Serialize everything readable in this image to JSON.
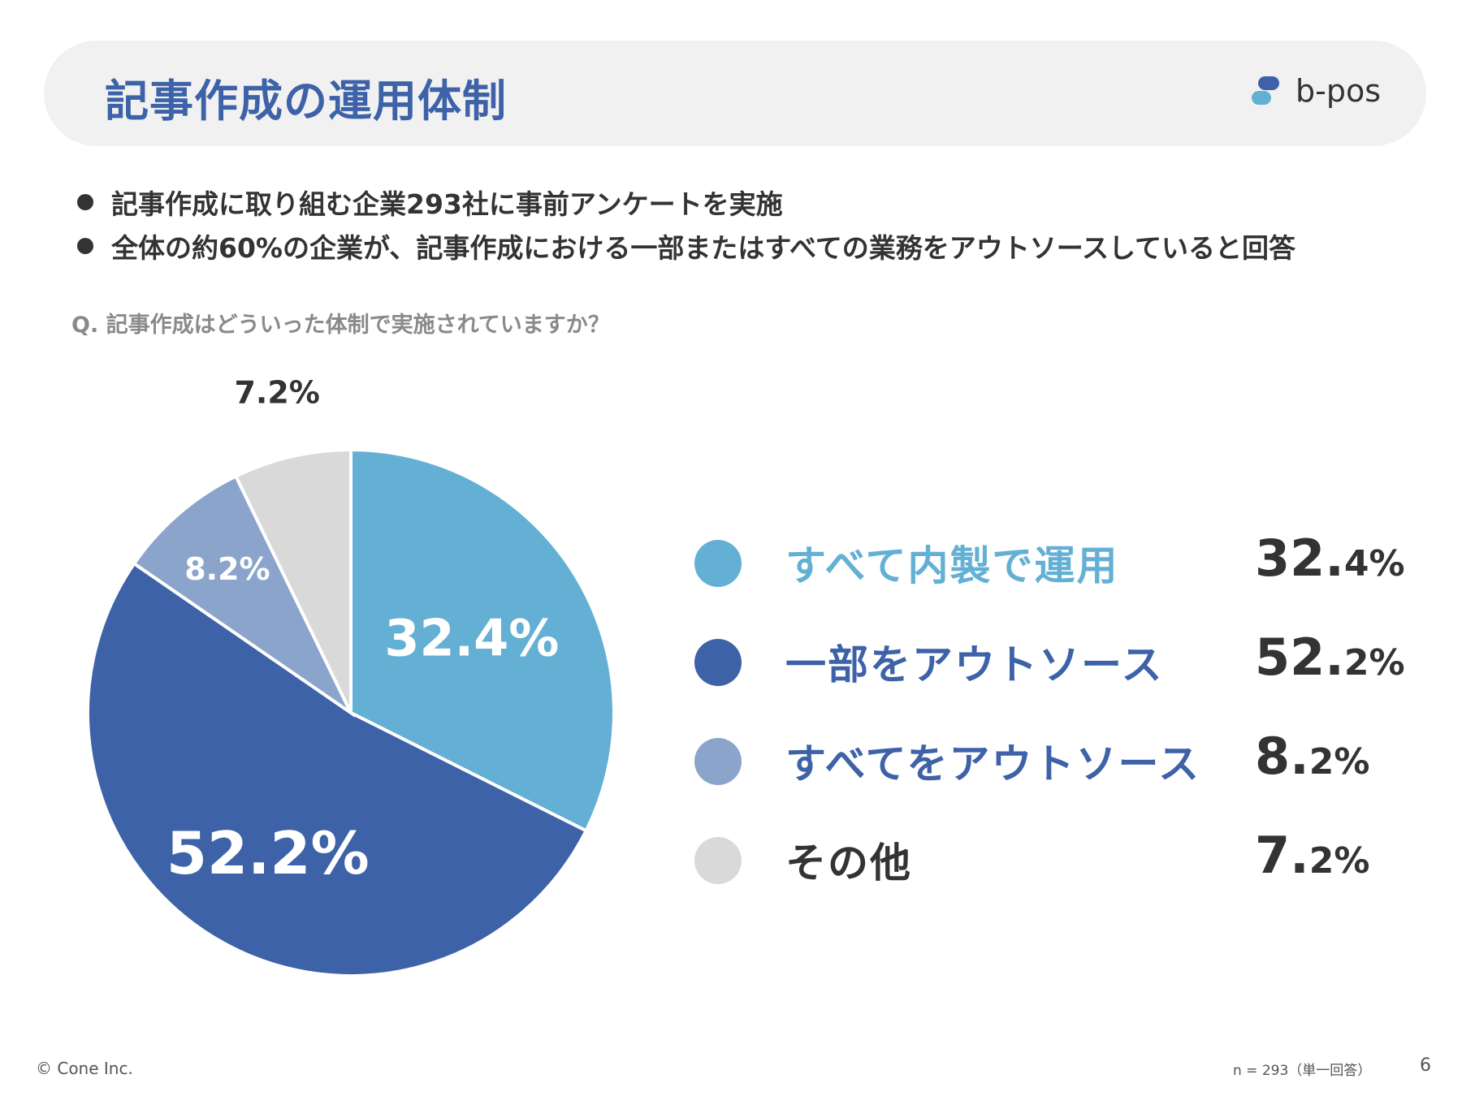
{
  "header": {
    "title": "記事作成の運用体制",
    "logo_text": "b-pos",
    "logo_colors": [
      "#3d62a8",
      "#63b0d4"
    ]
  },
  "bullets": [
    "記事作成に取り組む企業293社に事前アンケートを実施",
    "全体の約60%の企業が、記事作成における一部またはすべての業務をアウトソースしていると回答"
  ],
  "question": "Q. 記事作成はどういった体制で実施されていますか？",
  "chart_data": {
    "type": "pie",
    "title": "",
    "categories": [
      "すべて内製で運用",
      "一部をアウトソース",
      "すべてをアウトソース",
      "その他"
    ],
    "values": [
      32.4,
      52.2,
      8.2,
      7.2
    ],
    "labels": [
      "32.4%",
      "52.2%",
      "8.2%",
      "7.2%"
    ],
    "colors": [
      "#63b0d4",
      "#3d62a8",
      "#8ba4cc",
      "#d9d9d9"
    ],
    "label_colors": [
      "#ffffff",
      "#ffffff",
      "#ffffff",
      "#333333"
    ],
    "start": "12 o'clock",
    "direction": "clockwise"
  },
  "legend": [
    {
      "label": "すべて内製で運用",
      "int": "32.",
      "dec": "4%",
      "dot_color": "#63b0d4",
      "text_color": "#63b0d4"
    },
    {
      "label": "一部をアウトソース",
      "int": "52.",
      "dec": "2%",
      "dot_color": "#3d62a8",
      "text_color": "#3d62a8"
    },
    {
      "label": "すべてをアウトソース",
      "int": "8.",
      "dec": "2%",
      "dot_color": "#8ba4cc",
      "text_color": "#3d62a8"
    },
    {
      "label": "その他",
      "int": "7.",
      "dec": "2%",
      "dot_color": "#d9d9d9",
      "text_color": "#333333"
    }
  ],
  "footer": {
    "copyright": "© Cone Inc.",
    "sample_note": "n = 293（単一回答）",
    "page_number": "6"
  }
}
